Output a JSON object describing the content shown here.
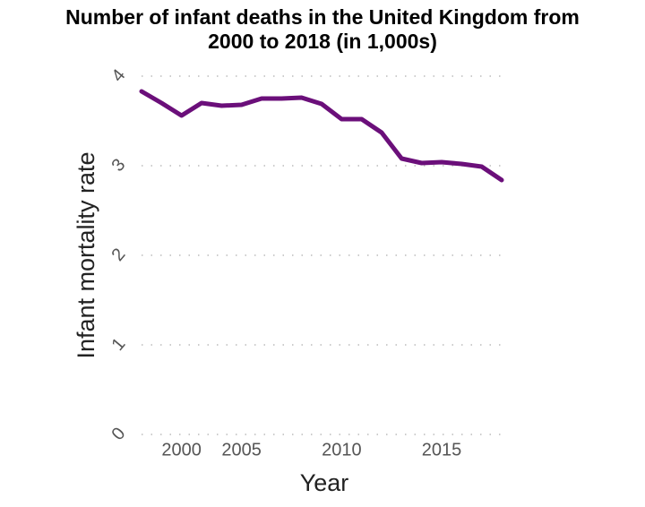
{
  "chart_data": {
    "type": "line",
    "title": "Number of infant deaths in the United Kingdom from 2000 to 2018 (in 1,000s)",
    "x_label": "Year",
    "y_label": "Infant mortality rate",
    "categories": [
      null,
      null,
      "2000",
      null,
      null,
      "2005",
      null,
      null,
      null,
      null,
      "2010",
      null,
      null,
      null,
      null,
      "2015",
      null,
      null,
      null
    ],
    "series": [
      {
        "name": "Infant mortality rate",
        "color": "#6b0f7a",
        "values": [
          3.83,
          3.7,
          3.56,
          3.7,
          3.67,
          3.68,
          3.75,
          3.75,
          3.76,
          3.69,
          3.52,
          3.52,
          3.37,
          3.08,
          3.03,
          3.04,
          3.02,
          2.99,
          2.84
        ]
      }
    ],
    "ylim": [
      0,
      4
    ],
    "yticks": [
      0,
      1,
      2,
      3,
      4
    ],
    "grid": true
  }
}
